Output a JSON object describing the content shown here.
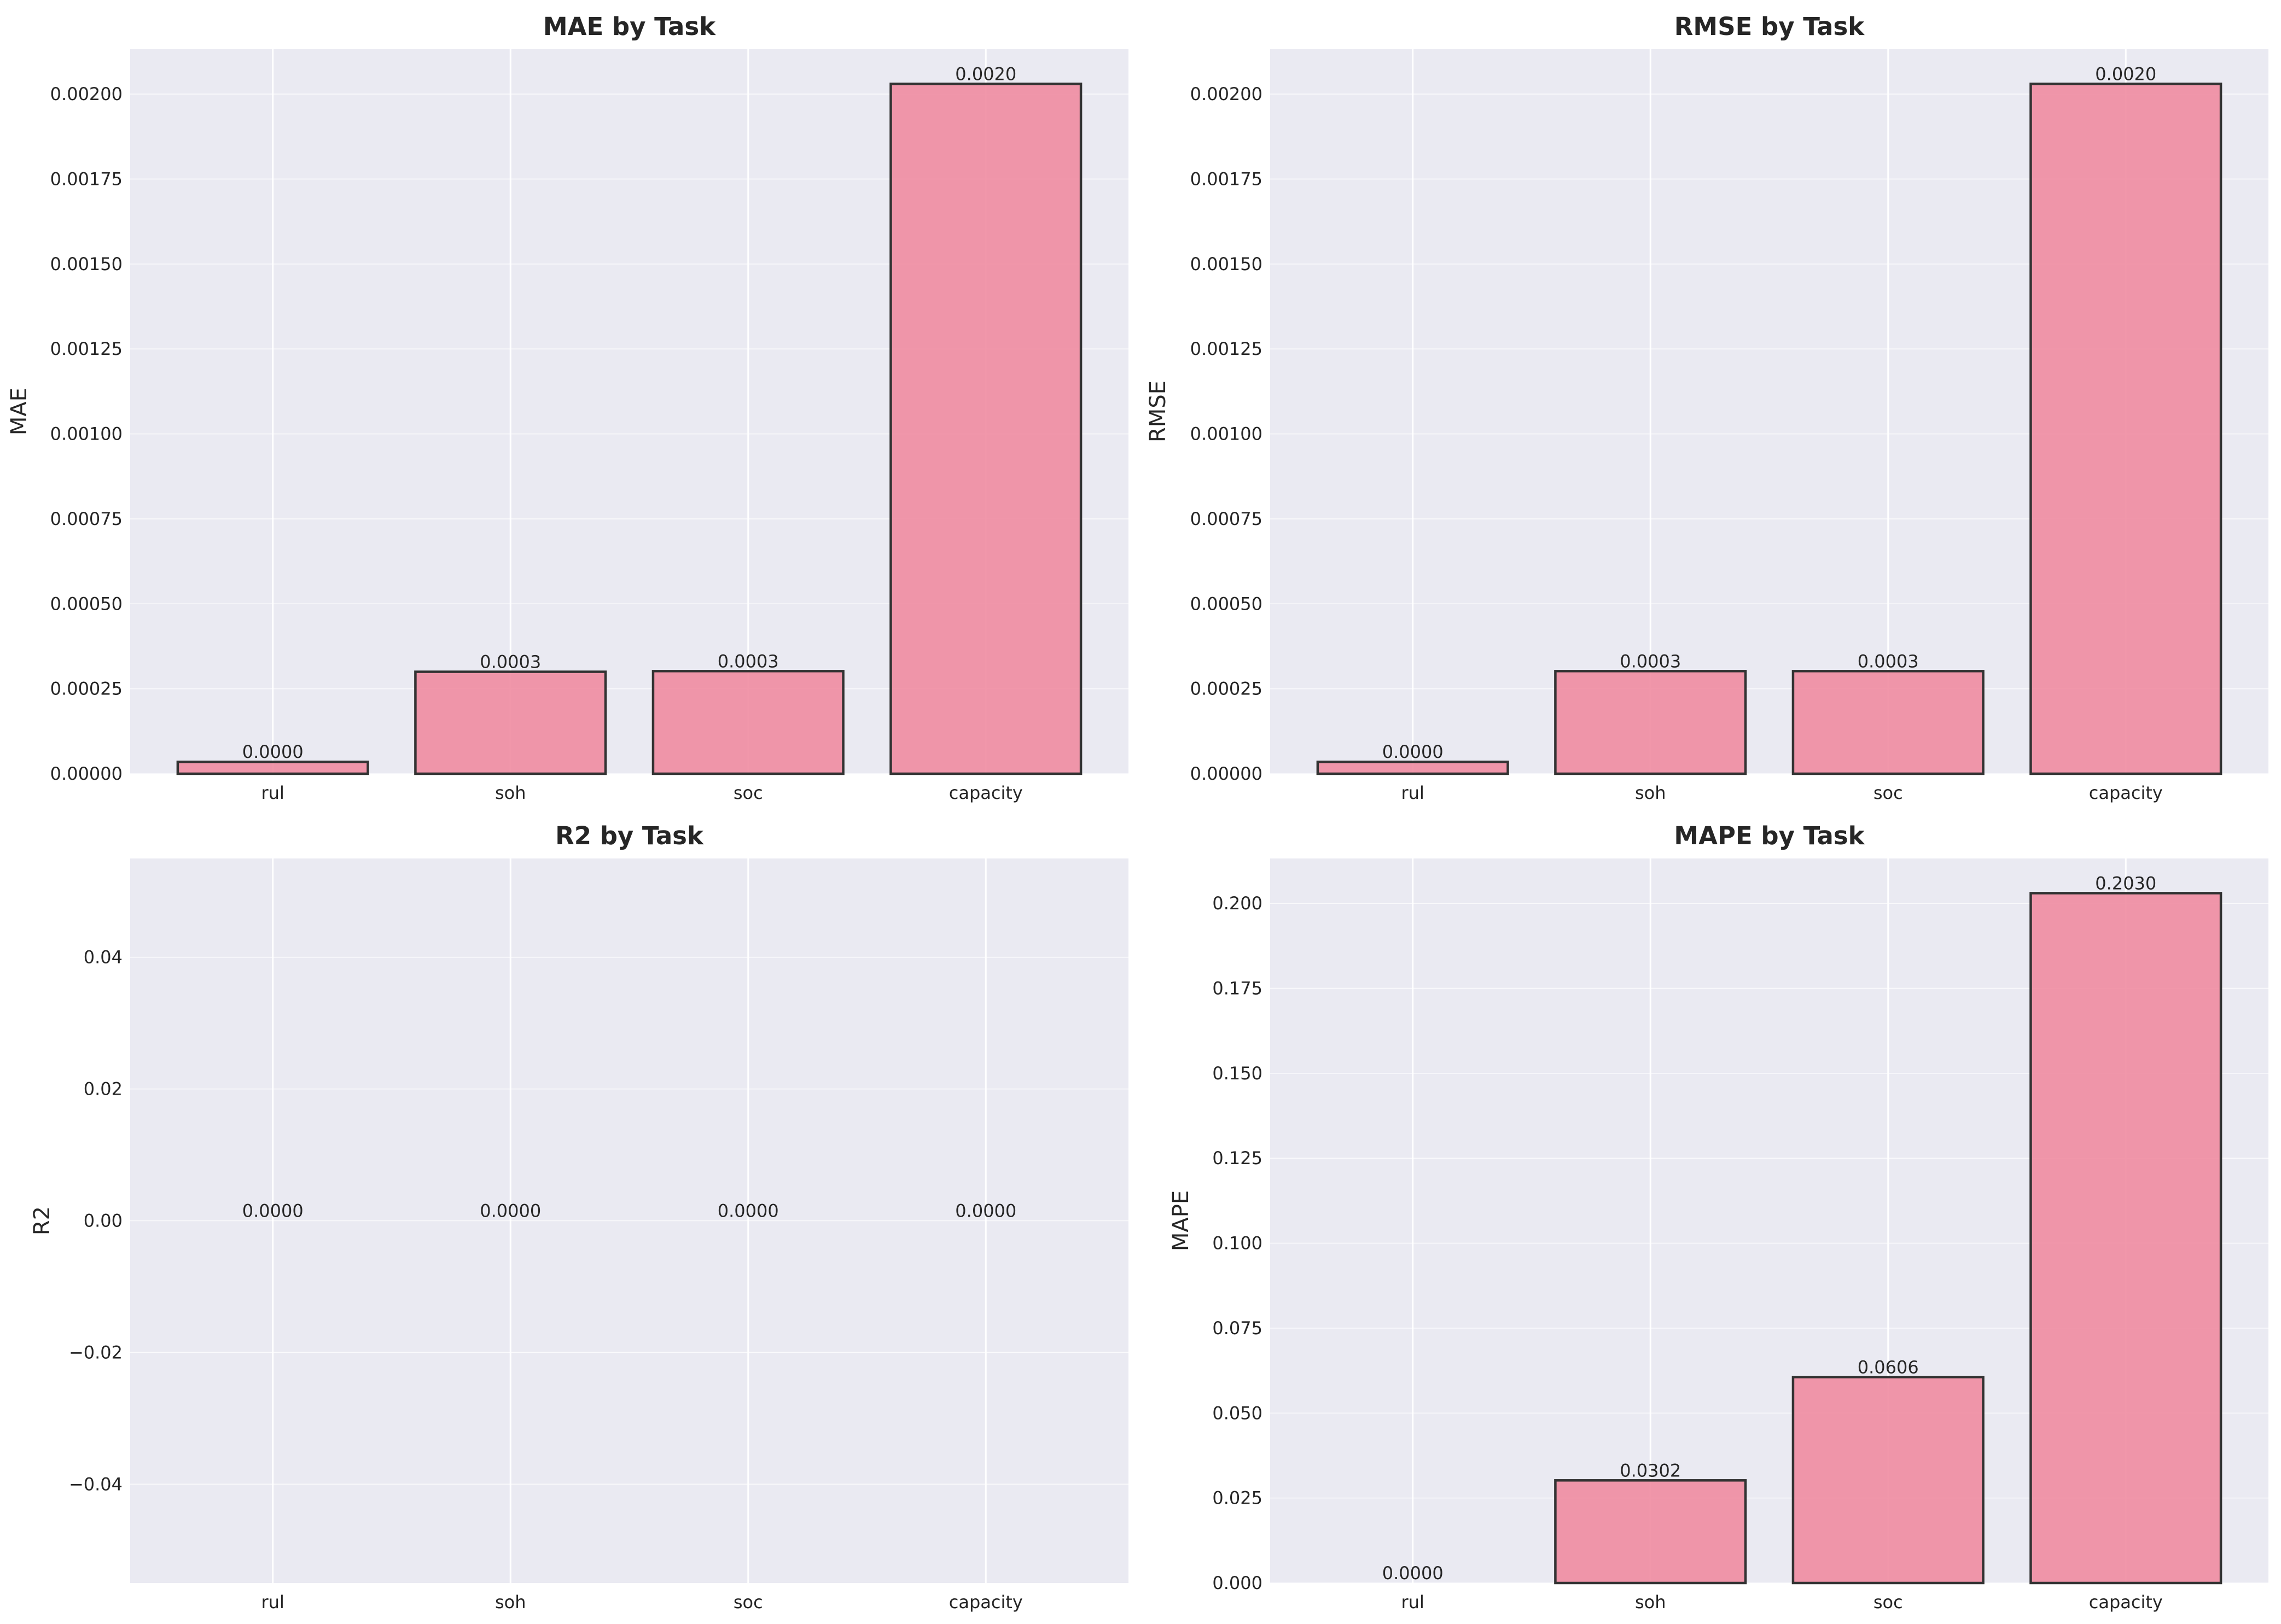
{
  "chart_data": [
    {
      "type": "bar",
      "title": "MAE by Task",
      "xlabel": "",
      "ylabel": "MAE",
      "categories": [
        "rul",
        "soh",
        "soc",
        "capacity"
      ],
      "values": [
        3.5e-05,
        0.0003,
        0.000302,
        0.00203
      ],
      "value_labels": [
        "0.0000",
        "0.0003",
        "0.0003",
        "0.0020"
      ],
      "ylim": [
        0,
        0.002132
      ],
      "yticks": [
        0,
        0.00025,
        0.0005,
        0.00075,
        0.001,
        0.00125,
        0.0015,
        0.00175,
        0.002
      ],
      "ytick_labels": [
        "0.00000",
        "0.00025",
        "0.00050",
        "0.00075",
        "0.00100",
        "0.00125",
        "0.00150",
        "0.00175",
        "0.00200"
      ],
      "grid": true
    },
    {
      "type": "bar",
      "title": "RMSE by Task",
      "xlabel": "",
      "ylabel": "RMSE",
      "categories": [
        "rul",
        "soh",
        "soc",
        "capacity"
      ],
      "values": [
        3.5e-05,
        0.000302,
        0.000302,
        0.00203
      ],
      "value_labels": [
        "0.0000",
        "0.0003",
        "0.0003",
        "0.0020"
      ],
      "ylim": [
        0,
        0.002132
      ],
      "yticks": [
        0,
        0.00025,
        0.0005,
        0.00075,
        0.001,
        0.00125,
        0.0015,
        0.00175,
        0.002
      ],
      "ytick_labels": [
        "0.00000",
        "0.00025",
        "0.00050",
        "0.00075",
        "0.00100",
        "0.00125",
        "0.00150",
        "0.00175",
        "0.00200"
      ],
      "grid": true
    },
    {
      "type": "bar",
      "title": "R2 by Task",
      "xlabel": "",
      "ylabel": "R2",
      "categories": [
        "rul",
        "soh",
        "soc",
        "capacity"
      ],
      "values": [
        0,
        0,
        0,
        0
      ],
      "value_labels": [
        "0.0000",
        "0.0000",
        "0.0000",
        "0.0000"
      ],
      "ylim": [
        -0.055,
        0.055
      ],
      "yticks": [
        -0.04,
        -0.02,
        0,
        0.02,
        0.04
      ],
      "ytick_labels": [
        "−0.04",
        "−0.02",
        "0.00",
        "0.02",
        "0.04"
      ],
      "grid": true
    },
    {
      "type": "bar",
      "title": "MAPE by Task",
      "xlabel": "",
      "ylabel": "MAPE",
      "categories": [
        "rul",
        "soh",
        "soc",
        "capacity"
      ],
      "values": [
        0,
        0.0302,
        0.0606,
        0.203
      ],
      "value_labels": [
        "0.0000",
        "0.0302",
        "0.0606",
        "0.2030"
      ],
      "ylim": [
        0,
        0.2132
      ],
      "yticks": [
        0,
        0.025,
        0.05,
        0.075,
        0.1,
        0.125,
        0.15,
        0.175,
        0.2
      ],
      "ytick_labels": [
        "0.000",
        "0.025",
        "0.050",
        "0.075",
        "0.100",
        "0.125",
        "0.150",
        "0.175",
        "0.200"
      ],
      "grid": true
    }
  ],
  "colors": {
    "bar_fill": "#f08ca1",
    "bar_edge": "#333333",
    "plot_background": "#eaeaf2",
    "grid": "#ffffff",
    "text": "#262626"
  }
}
